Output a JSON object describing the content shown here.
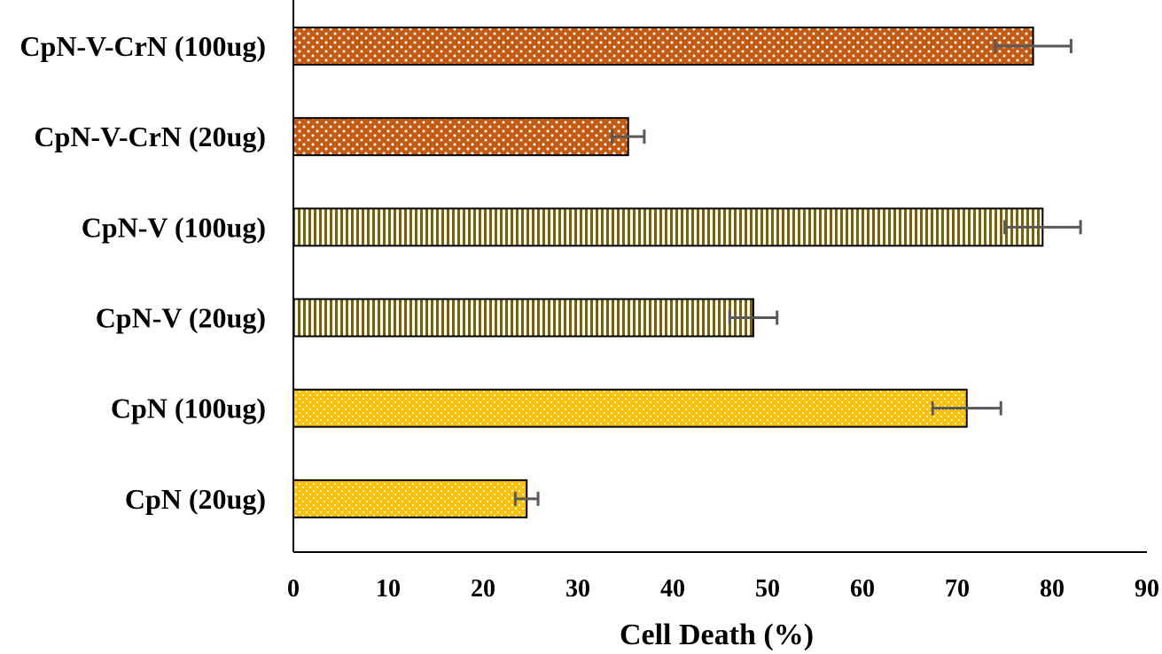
{
  "chart_data": {
    "type": "bar",
    "orientation": "horizontal",
    "categories": [
      "CpN-V-CrN (100ug)",
      "CpN-V-CrN (20ug)",
      "CpN-V (100ug)",
      "CpN-V (20ug)",
      "CpN (100ug)",
      "CpN (20ug)"
    ],
    "values": [
      78,
      35.3,
      79,
      48.5,
      71,
      24.6
    ],
    "errors": [
      4.0,
      1.7,
      4.0,
      2.5,
      3.6,
      1.2
    ],
    "colors": {
      "CpN-V-CrN": "#c55a11",
      "CpN-V": "#7f6000",
      "CpN": "#ffc000"
    },
    "patterns": [
      "dots",
      "dots",
      "vertical-lines",
      "vertical-lines",
      "checker-dots",
      "checker-dots"
    ],
    "xlabel": "Cell Death (%)",
    "ylabel": "",
    "title": "",
    "xlim": [
      0,
      90
    ],
    "xticks": [
      0,
      10,
      20,
      30,
      40,
      50,
      60,
      70,
      80,
      90
    ],
    "grid": false,
    "legend": "none"
  }
}
